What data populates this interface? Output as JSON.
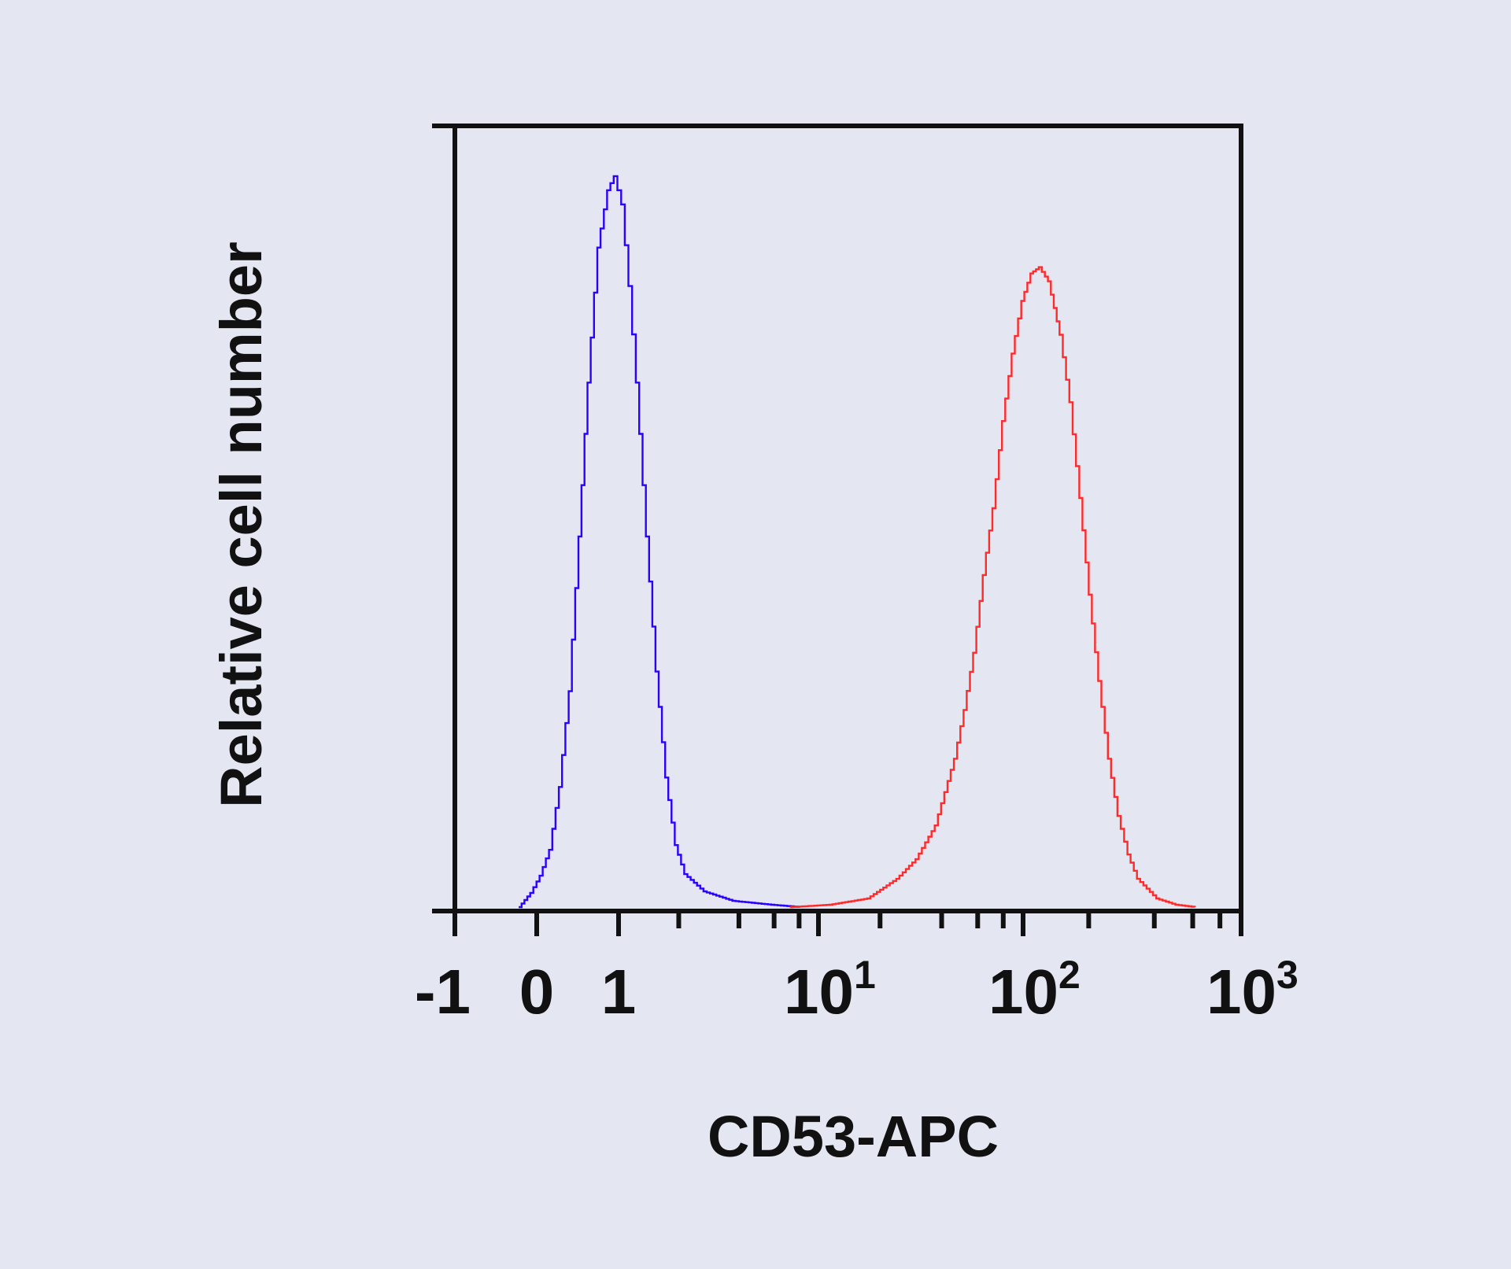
{
  "chart_data": {
    "type": "line",
    "title": "",
    "xlabel": "CD53-APC",
    "ylabel": "Relative cell number",
    "x_scale": "biexponential (linear -1 to 1, log above 1)",
    "xlim": [
      -1,
      1000
    ],
    "ylim": [
      0,
      1
    ],
    "grid": false,
    "legend": "none",
    "x_ticks": [
      {
        "value": -1,
        "base": "-1",
        "exp": ""
      },
      {
        "value": 0,
        "base": "0",
        "exp": ""
      },
      {
        "value": 1,
        "base": "1",
        "exp": ""
      },
      {
        "value": 10,
        "base": "10",
        "exp": "1"
      },
      {
        "value": 100,
        "base": "10",
        "exp": "2"
      },
      {
        "value": 1000,
        "base": "10",
        "exp": "3"
      }
    ],
    "x_minor_ticks": [
      2,
      4,
      6,
      8,
      20,
      40,
      60,
      80,
      200,
      400,
      600,
      800
    ],
    "series": [
      {
        "color": "#2a00ff",
        "points": [
          [
            -0.22,
            0.002
          ],
          [
            -0.08,
            0.02
          ],
          [
            0.035,
            0.042
          ],
          [
            0.15,
            0.075
          ],
          [
            0.27,
            0.155
          ],
          [
            0.39,
            0.277
          ],
          [
            0.51,
            0.474
          ],
          [
            0.62,
            0.67
          ],
          [
            0.74,
            0.842
          ],
          [
            0.86,
            0.915
          ],
          [
            0.94,
            0.933
          ],
          [
            1.03,
            0.897
          ],
          [
            1.12,
            0.793
          ],
          [
            1.22,
            0.67
          ],
          [
            1.37,
            0.474
          ],
          [
            1.53,
            0.302
          ],
          [
            1.71,
            0.167
          ],
          [
            1.91,
            0.081
          ],
          [
            2.13,
            0.044
          ],
          [
            2.66,
            0.022
          ],
          [
            3.71,
            0.01
          ],
          [
            5.8,
            0.005
          ],
          [
            8.1,
            0.002
          ]
        ]
      },
      {
        "color": "#ff2a2a",
        "points": [
          [
            7.2,
            0.002
          ],
          [
            11.3,
            0.005
          ],
          [
            17.3,
            0.013
          ],
          [
            24,
            0.038
          ],
          [
            29.8,
            0.063
          ],
          [
            37,
            0.106
          ],
          [
            45.9,
            0.191
          ],
          [
            51.2,
            0.253
          ],
          [
            57,
            0.326
          ],
          [
            63.5,
            0.425
          ],
          [
            70.8,
            0.51
          ],
          [
            78.9,
            0.621
          ],
          [
            87.9,
            0.707
          ],
          [
            98,
            0.774
          ],
          [
            108,
            0.809
          ],
          [
            118,
            0.817
          ],
          [
            130,
            0.799
          ],
          [
            147,
            0.731
          ],
          [
            163,
            0.645
          ],
          [
            181,
            0.523
          ],
          [
            200,
            0.4
          ],
          [
            221,
            0.29
          ],
          [
            245,
            0.191
          ],
          [
            271,
            0.118
          ],
          [
            301,
            0.069
          ],
          [
            333,
            0.038
          ],
          [
            408,
            0.013
          ],
          [
            500,
            0.005
          ],
          [
            614,
            0.002
          ]
        ]
      }
    ]
  }
}
